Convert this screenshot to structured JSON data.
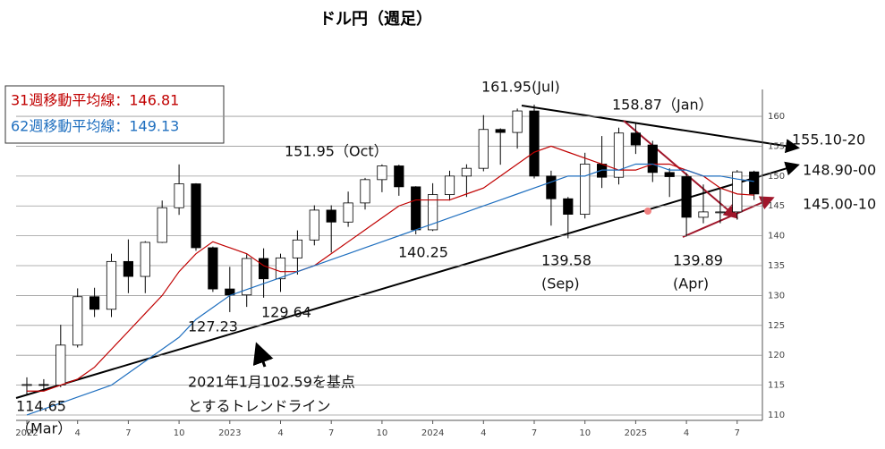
{
  "chart_data": {
    "type": "candlestick",
    "title": "ドル円（週足）",
    "categories": [
      "2022",
      null,
      null,
      "4",
      null,
      null,
      "7",
      null,
      null,
      "10",
      null,
      null,
      "2023",
      null,
      null,
      "4",
      null,
      null,
      "7",
      null,
      null,
      "10",
      null,
      null,
      "2024",
      null,
      null,
      "4",
      null,
      null,
      "7",
      null,
      null,
      "10",
      null,
      null,
      "2025",
      null,
      null,
      "4",
      null,
      null,
      "7",
      null
    ],
    "open": [
      115.1,
      115.1,
      115.0,
      121.7,
      129.8,
      127.7,
      135.7,
      133.2,
      138.9,
      144.7,
      148.7,
      138.0,
      131.1,
      130.1,
      136.2,
      132.8,
      136.3,
      139.3,
      144.3,
      142.3,
      145.5,
      149.4,
      151.7,
      148.2,
      141.0,
      146.9,
      150.0,
      151.3,
      157.8,
      157.3,
      160.9,
      150.0,
      146.2,
      143.6,
      152.0,
      149.8,
      157.2,
      155.2,
      150.6,
      149.9,
      143.1,
      144.0,
      144.0,
      150.7
    ],
    "high": [
      116.3,
      116.0,
      125.1,
      131.2,
      131.3,
      137.0,
      139.4,
      139.1,
      145.9,
      151.95,
      148.8,
      138.2,
      134.8,
      136.9,
      137.9,
      137.0,
      140.9,
      145.1,
      145.1,
      147.4,
      149.7,
      151.95,
      151.9,
      148.3,
      148.8,
      150.9,
      151.97,
      160.2,
      157.99,
      161.3,
      161.95,
      150.9,
      146.5,
      153.9,
      156.7,
      158.1,
      158.87,
      155.9,
      151.3,
      150.5,
      148.6,
      148.0,
      151.0,
      150.9
    ],
    "low": [
      113.5,
      114.2,
      114.65,
      121.3,
      126.4,
      126.4,
      130.4,
      130.4,
      138.8,
      143.5,
      137.5,
      130.6,
      127.23,
      128.1,
      129.64,
      130.6,
      133.5,
      138.4,
      137.2,
      141.5,
      144.4,
      147.3,
      146.7,
      140.25,
      140.8,
      145.9,
      146.5,
      150.8,
      151.9,
      154.6,
      149.6,
      141.7,
      139.58,
      142.9,
      148.0,
      148.6,
      153.7,
      149.0,
      146.5,
      139.89,
      142.1,
      142.1,
      142.7,
      146.0
    ],
    "close": [
      115.1,
      115.0,
      121.7,
      129.8,
      127.7,
      135.7,
      133.2,
      138.9,
      144.7,
      148.7,
      138.0,
      131.1,
      130.1,
      136.2,
      132.8,
      136.3,
      139.3,
      144.3,
      142.3,
      145.5,
      149.4,
      151.7,
      148.2,
      141.0,
      146.9,
      150.0,
      151.3,
      157.8,
      157.3,
      160.9,
      150.0,
      146.2,
      143.6,
      152.0,
      149.8,
      157.2,
      155.2,
      150.6,
      149.9,
      143.1,
      144.0,
      144.0,
      150.7,
      147.0
    ],
    "candle_up_color": "#ffffff",
    "candle_down_color": "#000000",
    "series": [
      {
        "name": "31週移動平均線：146.81",
        "color": "#c00000",
        "values": [
          114,
          114,
          115,
          116,
          118,
          121,
          124,
          127,
          130,
          134,
          137,
          139,
          138,
          137,
          135,
          134,
          134,
          135,
          137,
          139,
          141,
          143,
          145,
          146,
          146,
          146,
          147,
          148,
          150,
          152,
          154,
          155,
          154,
          153,
          152,
          151,
          151,
          152,
          152,
          151,
          150,
          148,
          147,
          146.8
        ]
      },
      {
        "name": "62週移動平均線：149.13",
        "color": "#1f6fbf",
        "values": [
          110,
          111,
          112,
          113,
          114,
          115,
          117,
          119,
          121,
          123,
          126,
          128,
          130,
          131,
          132,
          133,
          134,
          135,
          136,
          137,
          138,
          139,
          140,
          141,
          142,
          143,
          144,
          145,
          146,
          147,
          148,
          149,
          150,
          150,
          151,
          151,
          152,
          152,
          151,
          151,
          150,
          150,
          149.5,
          149.1
        ]
      }
    ],
    "ylim": [
      109.1,
      164.5
    ],
    "yticks": [
      110,
      115,
      120,
      125,
      130,
      135,
      140,
      145,
      150,
      155,
      160
    ],
    "grid": true,
    "annotations": [
      "161.95(Jul)",
      "158.87（Jan）",
      "151.95（Oct）",
      "155.10-20",
      "148.90-00",
      "145.00-10",
      "140.25",
      "139.58",
      "(Sep)",
      "139.89",
      "(Apr)",
      "127.23",
      "129.64",
      "114.65",
      "（Mar）",
      "2021年1月102.59を基点",
      "とするトレンドライン"
    ]
  }
}
